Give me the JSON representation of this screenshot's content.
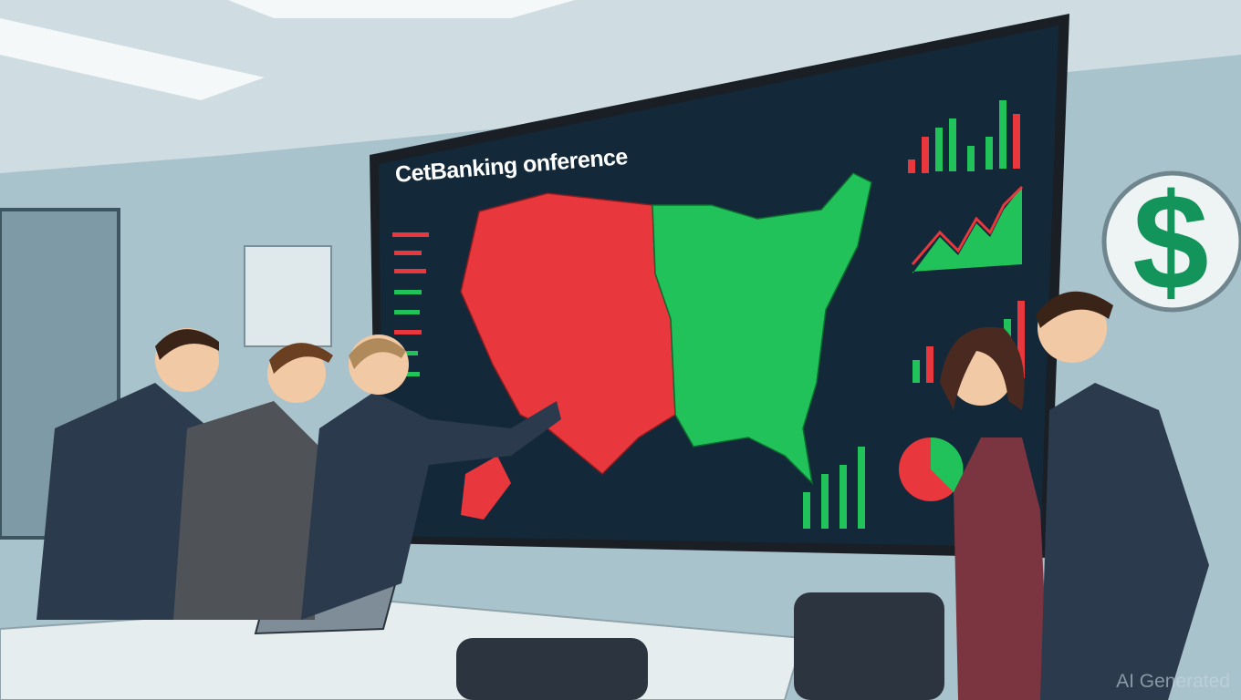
{
  "scene": {
    "screen_title": "CetBanking onference",
    "wall_sign_symbol": "$",
    "watermark": "AI Generated",
    "colors": {
      "wall": "#a9c3cc",
      "screen": "#13293a",
      "red": "#e8373d",
      "green": "#21c25a",
      "suit": "#2b3a4c",
      "dress": "#7a3540"
    }
  }
}
